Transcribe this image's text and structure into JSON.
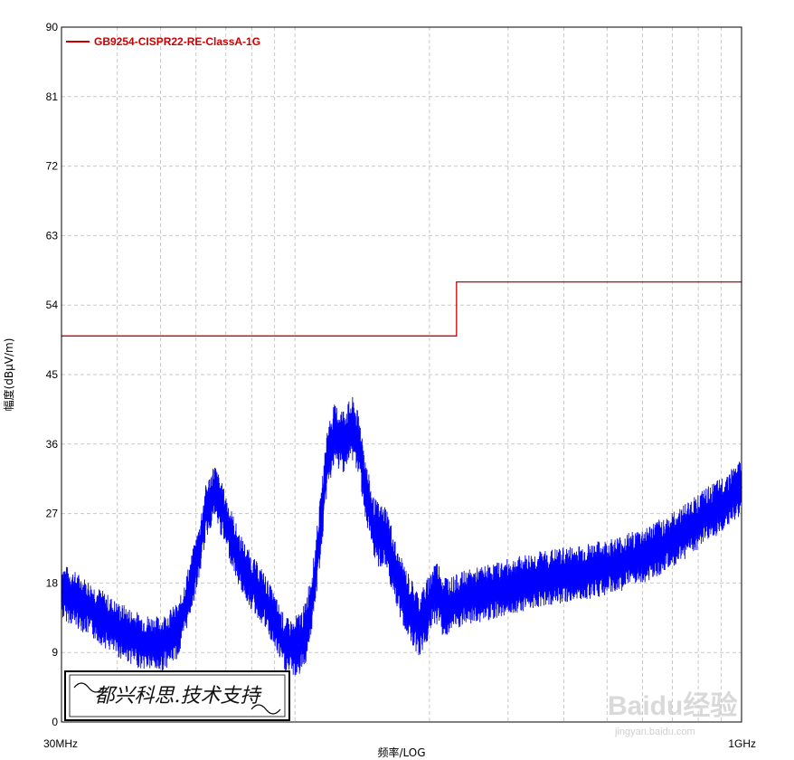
{
  "chart_data": {
    "type": "line",
    "xlabel": "频率/LOG",
    "ylabel": "幅度(dBµV/m)",
    "x_scale": "log",
    "x_ticks": [
      "30MHz",
      "1GHz"
    ],
    "xlim_mhz": [
      30,
      1000
    ],
    "ylim": [
      0,
      90
    ],
    "y_ticks": [
      "0",
      "9",
      "18",
      "27",
      "36",
      "45",
      "54",
      "63",
      "72",
      "81",
      "90"
    ],
    "grid": true,
    "legend_placement": "top-left",
    "colors": {
      "limit": "#cc0000",
      "measurement": "#0000ff"
    },
    "series": [
      {
        "name": "GB9254-CISPR22-RE-ClassA-1G",
        "color": "#cc0000",
        "x_mhz": [
          30,
          230,
          230,
          1000
        ],
        "values": [
          50,
          50,
          57,
          57
        ]
      },
      {
        "color": "#0000ff",
        "x_mhz": [
          30,
          33,
          36,
          40,
          45,
          50,
          55,
          58,
          61,
          63,
          66,
          70,
          75,
          80,
          85,
          90,
          95,
          100,
          105,
          110,
          115,
          118,
          122,
          128,
          135,
          140,
          145,
          150,
          155,
          160,
          165,
          170,
          180,
          190,
          200,
          205,
          210,
          215,
          220,
          240,
          260,
          300,
          350,
          400,
          450,
          500,
          600,
          700,
          800,
          900,
          1000
        ],
        "values": [
          17,
          15.5,
          14,
          12,
          10.5,
          10,
          12,
          17,
          22,
          27,
          30,
          26,
          21,
          18,
          16,
          13,
          10,
          9.5,
          11,
          17,
          27,
          34,
          37,
          36.5,
          38,
          35,
          29,
          25,
          24,
          24,
          21,
          18,
          15,
          12.5,
          15,
          17,
          16.5,
          15,
          15,
          16,
          16.5,
          17.5,
          18.5,
          19,
          19.5,
          20,
          21.5,
          23.5,
          26,
          28,
          30.5
        ]
      }
    ]
  },
  "stamp": {
    "text": "都兴科思.技术支持"
  },
  "watermark": {
    "text": "Baidu经验",
    "sub": "jingyan.baidu.com"
  }
}
